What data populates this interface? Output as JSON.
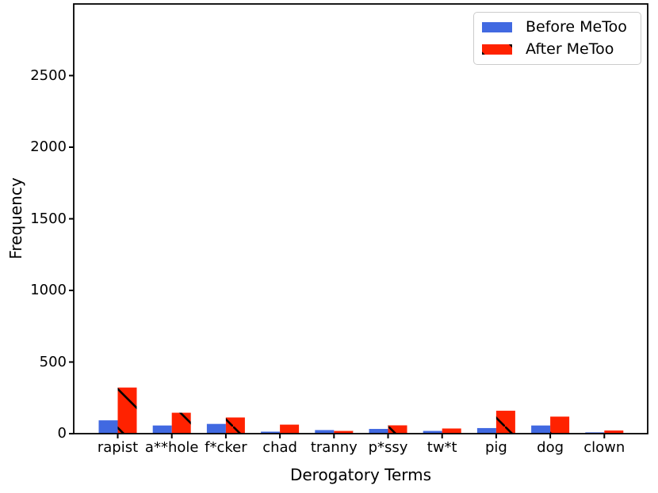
{
  "figure": {
    "background": "#ffffff"
  },
  "chart_data": {
    "type": "bar",
    "title": "",
    "xlabel": "Derogatory Terms",
    "ylabel": "Frequency",
    "categories": [
      "rapist",
      "a**hole",
      "f*cker",
      "chad",
      "tranny",
      "p*ssy",
      "tw*t",
      "pig",
      "dog",
      "clown"
    ],
    "series": [
      {
        "name": "Before MeToo",
        "color": "#4169e1",
        "hatch": "",
        "values": [
          93,
          57,
          68,
          14,
          25,
          33,
          19,
          39,
          57,
          9
        ]
      },
      {
        "name": "After MeToo",
        "color": "#ff2200",
        "hatch": "\\",
        "values": [
          322,
          146,
          113,
          63,
          19,
          58,
          36,
          160,
          119,
          22
        ]
      }
    ],
    "ylim": [
      0,
      3000
    ],
    "yticks": [
      0,
      500,
      1000,
      1500,
      2000,
      2500
    ],
    "legend": {
      "position": "upper right",
      "labels": [
        "Before MeToo",
        "After MeToo"
      ]
    },
    "grid": false,
    "axis_color": "#000000",
    "hatch_color": "#000000"
  }
}
